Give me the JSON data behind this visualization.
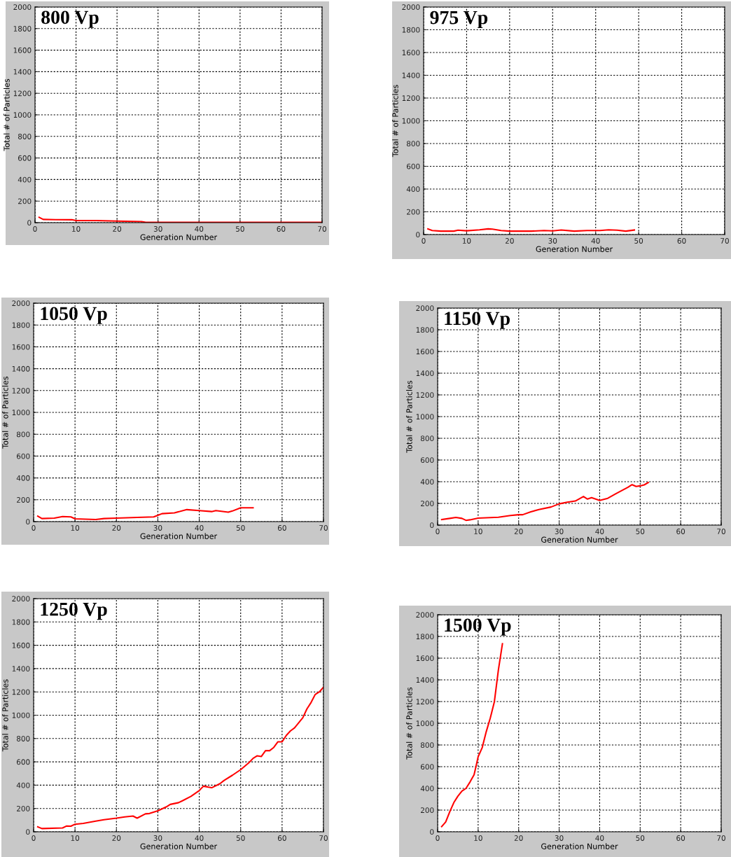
{
  "chart_data": [
    {
      "type": "line",
      "title": "800 Vp",
      "xlabel": "Generation Number",
      "ylabel": "Total # of Particles",
      "xlim": [
        0,
        70
      ],
      "ylim": [
        0,
        2000
      ],
      "xticks": [
        0,
        10,
        20,
        30,
        40,
        50,
        60,
        70
      ],
      "yticks": [
        0,
        200,
        400,
        600,
        800,
        1000,
        1200,
        1400,
        1600,
        1800,
        2000
      ],
      "grid": true,
      "series": [
        {
          "color": "#ff0000",
          "x": [
            1,
            2,
            5,
            9,
            10,
            15,
            20,
            26,
            27,
            70
          ],
          "values": [
            50,
            30,
            28,
            27,
            20,
            20,
            15,
            10,
            3,
            3
          ]
        }
      ]
    },
    {
      "type": "line",
      "title": "975 Vp",
      "xlabel": "Generation Number",
      "ylabel": "Total # of Particles",
      "xlim": [
        0,
        70
      ],
      "ylim": [
        0,
        2000
      ],
      "xticks": [
        0,
        10,
        20,
        30,
        40,
        50,
        60,
        70
      ],
      "yticks": [
        0,
        200,
        400,
        600,
        800,
        1000,
        1200,
        1400,
        1600,
        1800,
        2000
      ],
      "grid": true,
      "series": [
        {
          "color": "#ff0000",
          "x": [
            1,
            2,
            4,
            7,
            8,
            10,
            13,
            15,
            16,
            18,
            20,
            25,
            28,
            30,
            32,
            35,
            38,
            41,
            43,
            45,
            47,
            49
          ],
          "values": [
            50,
            35,
            30,
            30,
            38,
            33,
            42,
            50,
            48,
            35,
            30,
            30,
            35,
            32,
            40,
            30,
            35,
            35,
            42,
            38,
            30,
            40
          ]
        }
      ]
    },
    {
      "type": "line",
      "title": "1050 Vp",
      "xlabel": "Generation Number",
      "ylabel": "Total # of Particles",
      "xlim": [
        0,
        70
      ],
      "ylim": [
        0,
        2000
      ],
      "xticks": [
        0,
        10,
        20,
        30,
        40,
        50,
        60,
        70
      ],
      "yticks": [
        0,
        200,
        400,
        600,
        800,
        1000,
        1200,
        1400,
        1600,
        1800,
        2000
      ],
      "grid": true,
      "series": [
        {
          "color": "#ff0000",
          "x": [
            1,
            2,
            5,
            7,
            9,
            10,
            15,
            17,
            20,
            25,
            29,
            30,
            31,
            34,
            37,
            40,
            43,
            44,
            47,
            48,
            50,
            53
          ],
          "values": [
            50,
            28,
            32,
            47,
            43,
            26,
            19,
            28,
            32,
            39,
            43,
            58,
            73,
            80,
            110,
            101,
            92,
            101,
            86,
            97,
            127,
            127
          ]
        }
      ]
    },
    {
      "type": "line",
      "title": "1150 Vp",
      "xlabel": "Generation Number",
      "ylabel": "Total # of Particles",
      "xlim": [
        0,
        70
      ],
      "ylim": [
        0,
        2000
      ],
      "xticks": [
        0,
        10,
        20,
        30,
        40,
        50,
        60,
        70
      ],
      "yticks": [
        0,
        200,
        400,
        600,
        800,
        1000,
        1200,
        1400,
        1600,
        1800,
        2000
      ],
      "grid": true,
      "series": [
        {
          "color": "#ff0000",
          "x": [
            1,
            3,
            4.5,
            6,
            7,
            8,
            10,
            15,
            18,
            20,
            21,
            23,
            25,
            28,
            30,
            32,
            34,
            36,
            37,
            38,
            40,
            42,
            44,
            47,
            48,
            49,
            50,
            51,
            52
          ],
          "values": [
            51,
            62,
            71,
            62,
            44,
            49,
            64,
            73,
            89,
            96,
            96,
            122,
            144,
            167,
            196,
            211,
            222,
            264,
            240,
            253,
            227,
            247,
            289,
            349,
            373,
            356,
            362,
            371,
            393
          ]
        }
      ]
    },
    {
      "type": "line",
      "title": "1250 Vp",
      "xlabel": "Generation Number",
      "ylabel": "Total # of Particles",
      "xlim": [
        0,
        70
      ],
      "ylim": [
        0,
        2000
      ],
      "xticks": [
        0,
        10,
        20,
        30,
        40,
        50,
        60,
        70
      ],
      "yticks": [
        0,
        200,
        400,
        600,
        800,
        1000,
        1200,
        1400,
        1600,
        1800,
        2000
      ],
      "grid": true,
      "series": [
        {
          "color": "#ff0000",
          "x": [
            1,
            2,
            7,
            8,
            9,
            10,
            12,
            15,
            17,
            20,
            22,
            24,
            25,
            27,
            28,
            30,
            32,
            33,
            35,
            36,
            38,
            40,
            41,
            42,
            43,
            45,
            46,
            48,
            50,
            52,
            53,
            54,
            55,
            56,
            57,
            58,
            59,
            60,
            61,
            62,
            63,
            65,
            66,
            67,
            68,
            69,
            70
          ],
          "values": [
            43,
            28,
            33,
            50,
            48,
            65,
            72,
            91,
            104,
            117,
            128,
            135,
            117,
            154,
            157,
            180,
            213,
            235,
            250,
            267,
            304,
            354,
            391,
            385,
            378,
            413,
            441,
            485,
            533,
            593,
            630,
            652,
            646,
            696,
            696,
            724,
            772,
            772,
            826,
            865,
            891,
            978,
            1054,
            1109,
            1178,
            1200,
            1240
          ]
        }
      ]
    },
    {
      "type": "line",
      "title": "1500 Vp",
      "xlabel": "Generation Number",
      "ylabel": "Total # of Particles",
      "xlim": [
        0,
        70
      ],
      "ylim": [
        0,
        2000
      ],
      "xticks": [
        0,
        10,
        20,
        30,
        40,
        50,
        60,
        70
      ],
      "yticks": [
        0,
        200,
        400,
        600,
        800,
        1000,
        1200,
        1400,
        1600,
        1800,
        2000
      ],
      "grid": true,
      "series": [
        {
          "color": "#ff0000",
          "x": [
            1,
            2,
            3,
            4,
            5,
            6,
            7,
            8,
            9,
            9.5,
            10,
            11,
            12,
            13,
            14,
            15,
            16
          ],
          "values": [
            48,
            91,
            185,
            269,
            328,
            375,
            400,
            459,
            526,
            606,
            691,
            775,
            922,
            1048,
            1196,
            1491,
            1733
          ]
        }
      ]
    }
  ]
}
